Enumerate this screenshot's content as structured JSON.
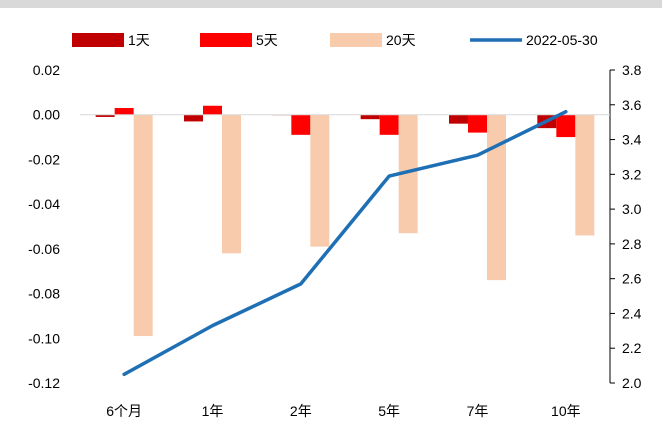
{
  "chart_data": {
    "type": "bar",
    "categories": [
      "6个月",
      "1年",
      "2年",
      "5年",
      "7年",
      "10年"
    ],
    "series": [
      {
        "name": "1天",
        "type": "bar",
        "axis": "left",
        "color": "#c00000",
        "values": [
          -0.001,
          -0.003,
          0.0,
          -0.002,
          -0.004,
          -0.006
        ]
      },
      {
        "name": "5天",
        "type": "bar",
        "axis": "left",
        "color": "#ff0000",
        "values": [
          0.003,
          0.004,
          -0.009,
          -0.009,
          -0.008,
          -0.01
        ]
      },
      {
        "name": "20天",
        "type": "bar",
        "axis": "left",
        "color": "#f8cbad",
        "values": [
          -0.099,
          -0.062,
          -0.059,
          -0.053,
          -0.074,
          -0.054
        ]
      },
      {
        "name": "2022-05-30",
        "type": "line",
        "axis": "right",
        "color": "#1f6fb5",
        "values": [
          2.05,
          2.33,
          2.57,
          3.19,
          3.31,
          3.56
        ]
      }
    ],
    "ylim_left": [
      -0.12,
      0.02
    ],
    "yticks_left": [
      "0.02",
      "0.00",
      "-0.02",
      "-0.04",
      "-0.06",
      "-0.08",
      "-0.10",
      "-0.12"
    ],
    "ylim_right": [
      2.0,
      3.8
    ],
    "yticks_right": [
      "3.8",
      "3.6",
      "3.4",
      "3.2",
      "3.0",
      "2.8",
      "2.6",
      "2.4",
      "2.2",
      "2.0"
    ],
    "legend_position": "top",
    "grid": false
  }
}
